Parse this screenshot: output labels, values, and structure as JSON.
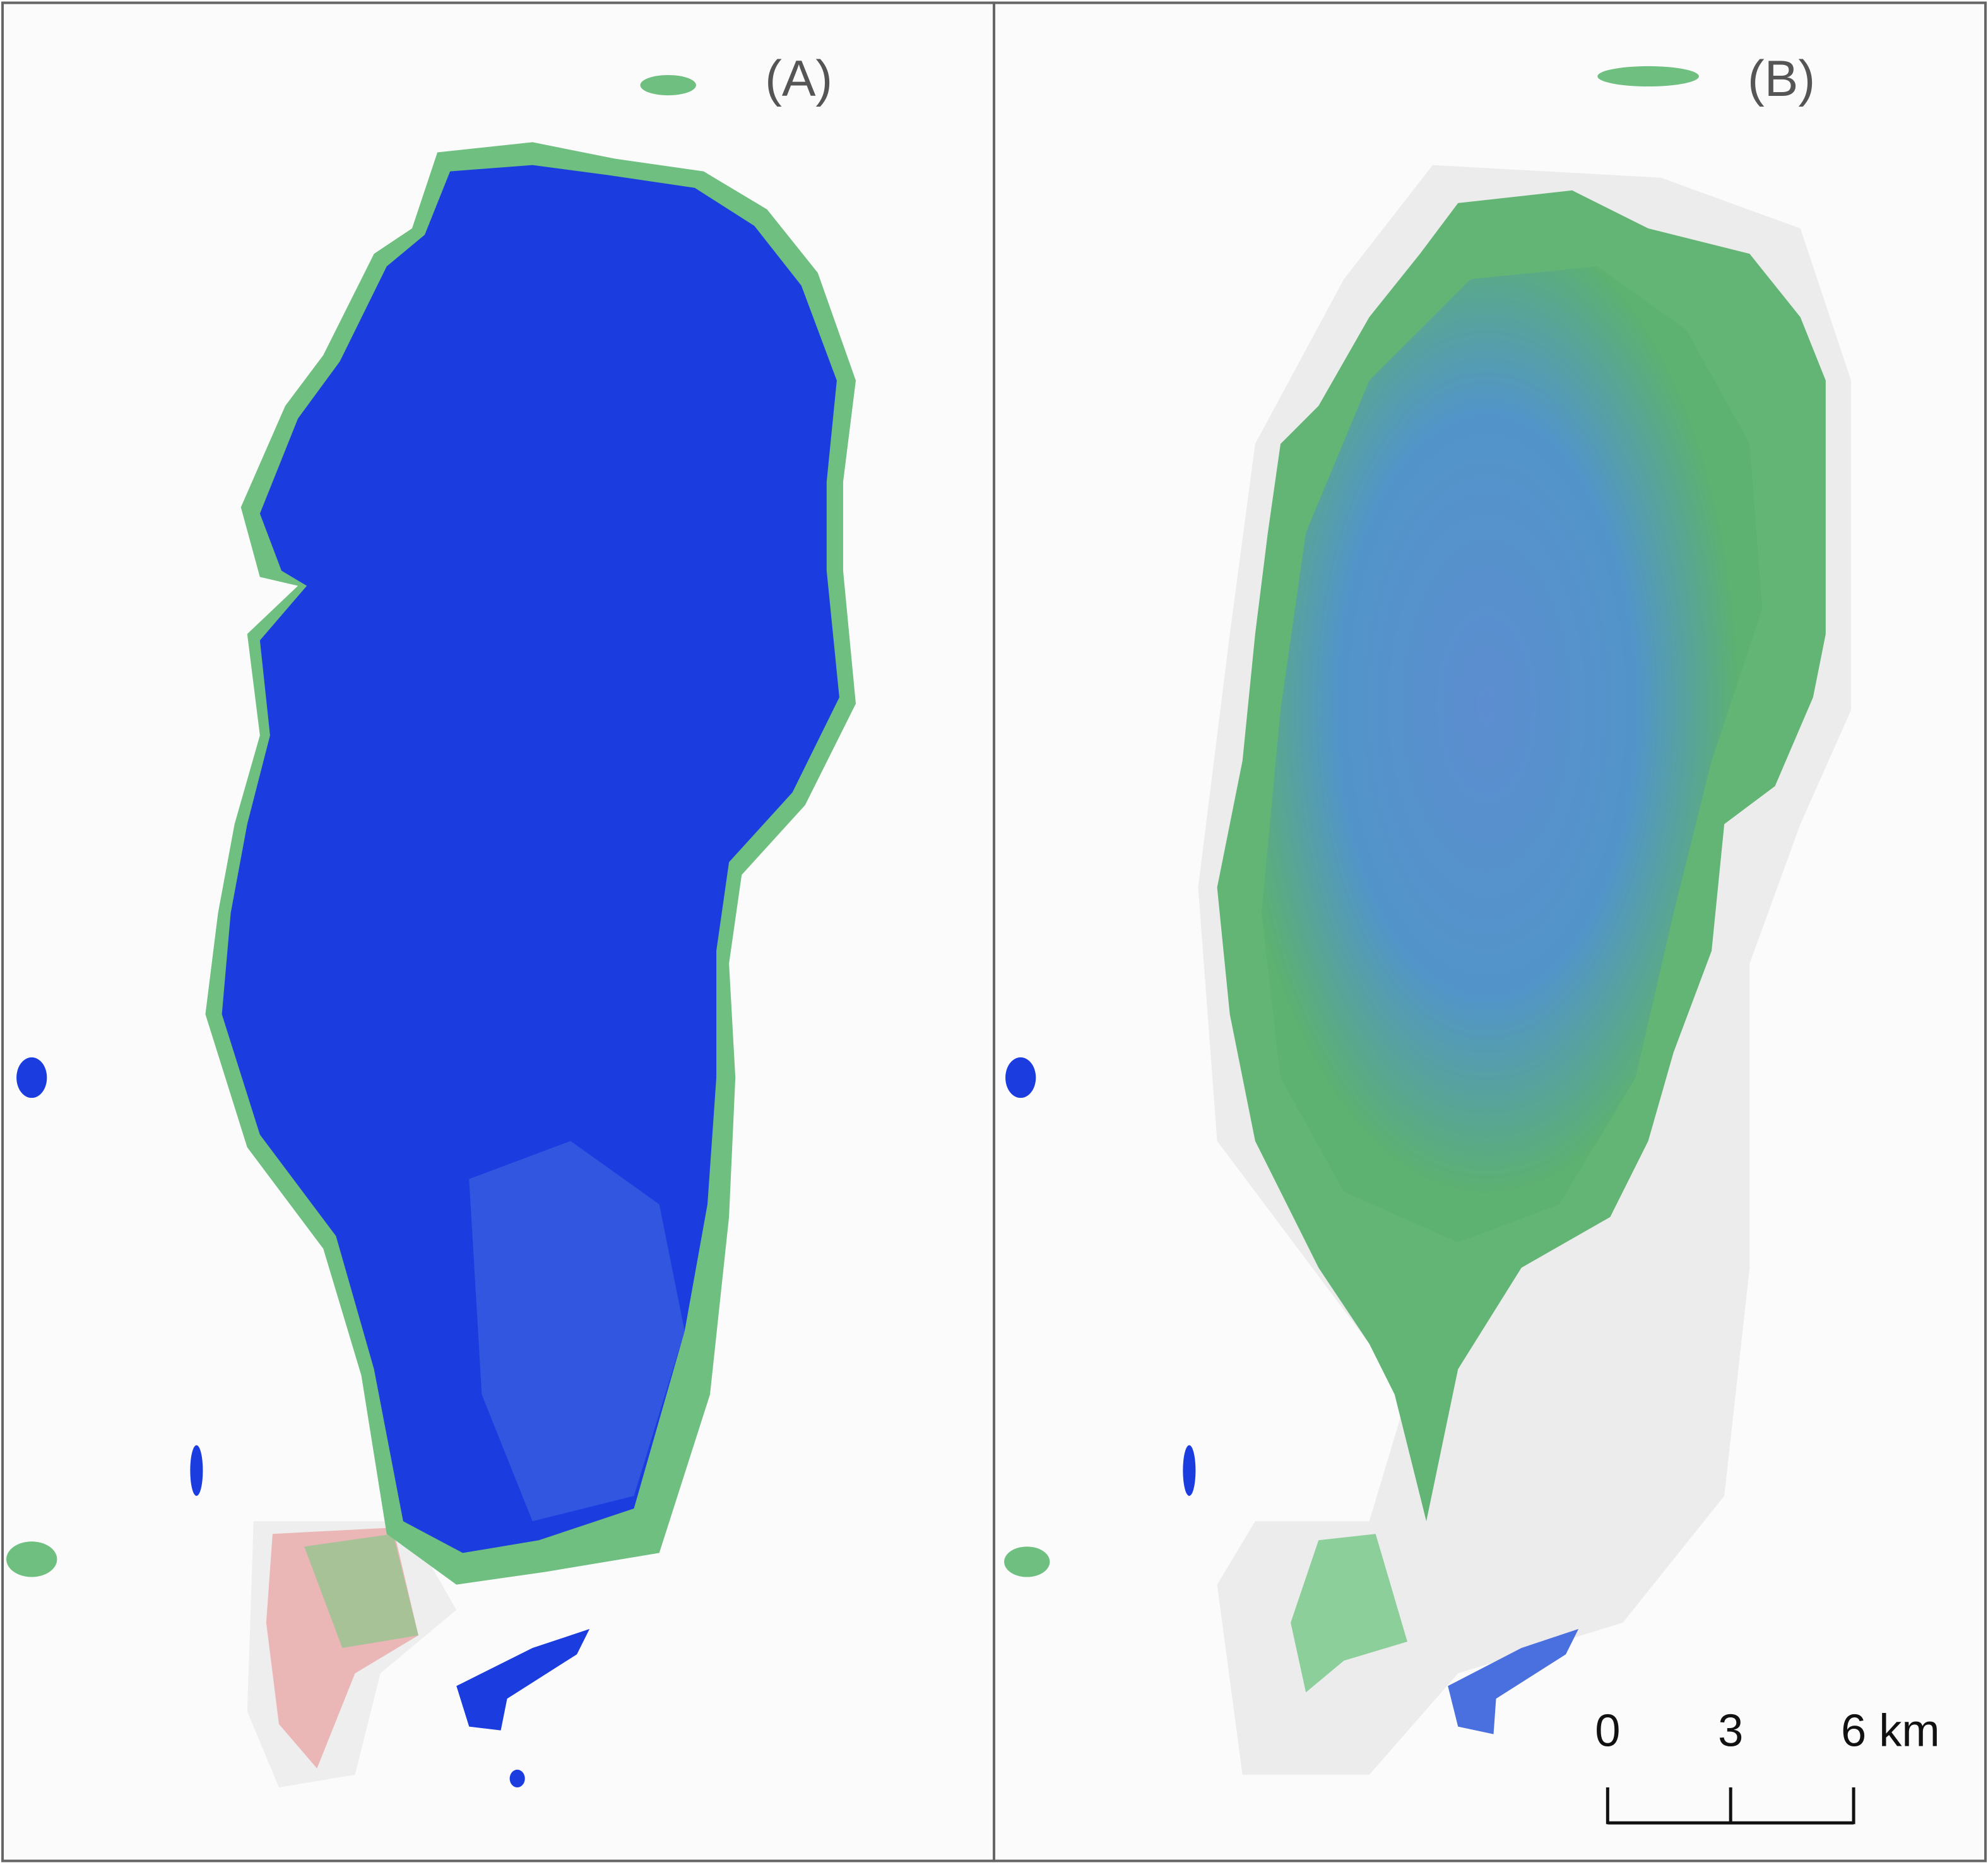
{
  "panels": [
    {
      "label": "(A)"
    },
    {
      "label": "(B)"
    }
  ],
  "scale_bar": {
    "ticks": [
      0,
      3,
      {
        "value": 6,
        "label": "6 km"
      }
    ]
  }
}
